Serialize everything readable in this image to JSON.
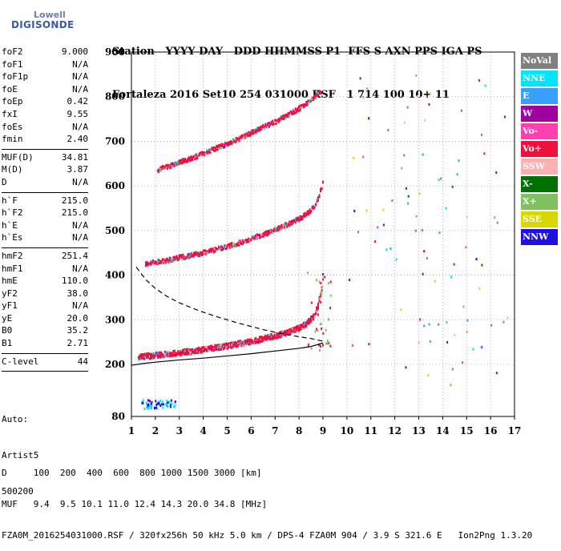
{
  "logo": {
    "top": "Lowell",
    "main": "DIGISONDE"
  },
  "header": {
    "line1": "Station   YYYY DAY   DDD HHMMSS P1  FFS S AXN PPS IGA PS",
    "line2": "Fortaleza 2016 Set10 254 031000 RSF   1 714 100 10+ 11"
  },
  "params": [
    {
      "k": "foF2",
      "v": "9.000"
    },
    {
      "k": "foF1",
      "v": "N/A"
    },
    {
      "k": "foF1p",
      "v": "N/A"
    },
    {
      "k": "foE",
      "v": "N/A"
    },
    {
      "k": "foEp",
      "v": "0.42"
    },
    {
      "k": "fxI",
      "v": "9.55"
    },
    {
      "k": "foEs",
      "v": "N/A"
    },
    {
      "k": "fmin",
      "v": "2.40"
    },
    {
      "sep": true
    },
    {
      "k": "MUF(D)",
      "v": "34.81"
    },
    {
      "k": "M(D)",
      "v": "3.87"
    },
    {
      "k": "D",
      "v": "N/A"
    },
    {
      "sep": true
    },
    {
      "k": "h`F",
      "v": "215.0"
    },
    {
      "k": "h`F2",
      "v": "215.0"
    },
    {
      "k": "h`E",
      "v": "N/A"
    },
    {
      "k": "h`Es",
      "v": "N/A"
    },
    {
      "sep": true
    },
    {
      "k": "hmF2",
      "v": "251.4"
    },
    {
      "k": "hmF1",
      "v": "N/A"
    },
    {
      "k": "hmE",
      "v": "110.0"
    },
    {
      "k": "yF2",
      "v": "38.0"
    },
    {
      "k": "yF1",
      "v": "N/A"
    },
    {
      "k": "yE",
      "v": "20.0"
    },
    {
      "k": "B0",
      "v": "35.2"
    },
    {
      "k": "B1",
      "v": "2.71"
    },
    {
      "sep": true
    },
    {
      "k": "C-level",
      "v": "44"
    },
    {
      "sep": true
    }
  ],
  "auto": {
    "line1": "Auto:",
    "line2": "Artist5",
    "line3": "500200"
  },
  "footer": {
    "line1": "D     100  200  400  600  800 1000 1500 3000 [km]",
    "line2": "MUF   9.4  9.5 10.1 11.0 12.4 14.3 20.0 34.8 [MHz]",
    "line3": "FZA0M_2016254031000.RSF / 320fx256h 50 kHz 5.0 km / DPS-4 FZA0M 904 / 3.9 S 321.6 E   Ion2Png 1.3.20"
  },
  "legend": [
    {
      "label": "NoVal",
      "color": "#808080"
    },
    {
      "label": "NNE",
      "color": "#00e5ff"
    },
    {
      "label": "E",
      "color": "#3aa0ff"
    },
    {
      "label": "W",
      "color": "#a000a0"
    },
    {
      "label": "Vo-",
      "color": "#ff40b0"
    },
    {
      "label": "Vo+",
      "color": "#f0103c"
    },
    {
      "label": "SSW",
      "color": "#ffb0b0"
    },
    {
      "label": "X-",
      "color": "#007000"
    },
    {
      "label": "X+",
      "color": "#80c060"
    },
    {
      "label": "SSE",
      "color": "#d8d800"
    },
    {
      "label": "NNW",
      "color": "#2010e0"
    }
  ],
  "chart_data": {
    "type": "scatter",
    "xlabel": "",
    "ylabel": "",
    "xlim": [
      1,
      17
    ],
    "ylim": [
      80,
      900
    ],
    "xticks": [
      1,
      2,
      3,
      4,
      5,
      6,
      7,
      8,
      9,
      10,
      11,
      12,
      13,
      14,
      15,
      16,
      17
    ],
    "yticks": [
      80,
      200,
      300,
      400,
      500,
      600,
      700,
      800,
      900
    ],
    "grid": true,
    "series": [
      {
        "name": "O-trace F (1st hop)",
        "color": "#f0103c",
        "x": [
          1.3,
          1.6,
          2.0,
          2.5,
          3.0,
          3.5,
          4.0,
          4.5,
          5.0,
          5.5,
          6.0,
          6.5,
          7.0,
          7.5,
          8.0,
          8.3,
          8.6,
          8.8,
          8.95,
          9.0
        ],
        "y": [
          215,
          217,
          219,
          222,
          225,
          228,
          232,
          236,
          240,
          245,
          250,
          256,
          262,
          270,
          280,
          290,
          305,
          330,
          370,
          395
        ]
      },
      {
        "name": "Second hop",
        "color": "#f0103c",
        "x": [
          1.6,
          2.0,
          2.5,
          3.0,
          3.5,
          4.0,
          4.5,
          5.0,
          5.5,
          6.0,
          6.5,
          7.0,
          7.5,
          8.0,
          8.3,
          8.6,
          8.8,
          9.0
        ],
        "y": [
          425,
          428,
          432,
          438,
          443,
          449,
          456,
          463,
          471,
          480,
          490,
          500,
          512,
          525,
          535,
          550,
          570,
          605
        ]
      },
      {
        "name": "Third hop",
        "color": "#f0103c",
        "x": [
          2.1,
          2.5,
          3.0,
          3.5,
          4.0,
          4.5,
          5.0,
          5.5,
          6.0,
          6.5,
          7.0,
          7.5,
          8.0,
          8.3,
          8.6,
          8.9
        ],
        "y": [
          635,
          642,
          652,
          660,
          672,
          682,
          693,
          705,
          717,
          730,
          742,
          757,
          772,
          782,
          795,
          810
        ]
      },
      {
        "name": "Profile (dashed)",
        "color": "#000000",
        "x": [
          1.2,
          1.6,
          2.0,
          2.5,
          3.0,
          3.5,
          4.0,
          4.5,
          5.0,
          5.5,
          6.0,
          6.5,
          7.0,
          7.5,
          8.0,
          8.5,
          9.0
        ],
        "y": [
          418,
          390,
          370,
          352,
          338,
          327,
          317,
          308,
          300,
          292,
          285,
          278,
          272,
          267,
          262,
          258,
          252
        ]
      },
      {
        "name": "Profile (solid)",
        "color": "#000000",
        "x": [
          1.0,
          1.5,
          2.0,
          3.0,
          4.0,
          5.0,
          6.0,
          7.0,
          8.0,
          8.5,
          9.0
        ],
        "y": [
          198,
          202,
          205,
          210,
          214,
          219,
          224,
          230,
          236,
          240,
          248
        ]
      }
    ]
  }
}
